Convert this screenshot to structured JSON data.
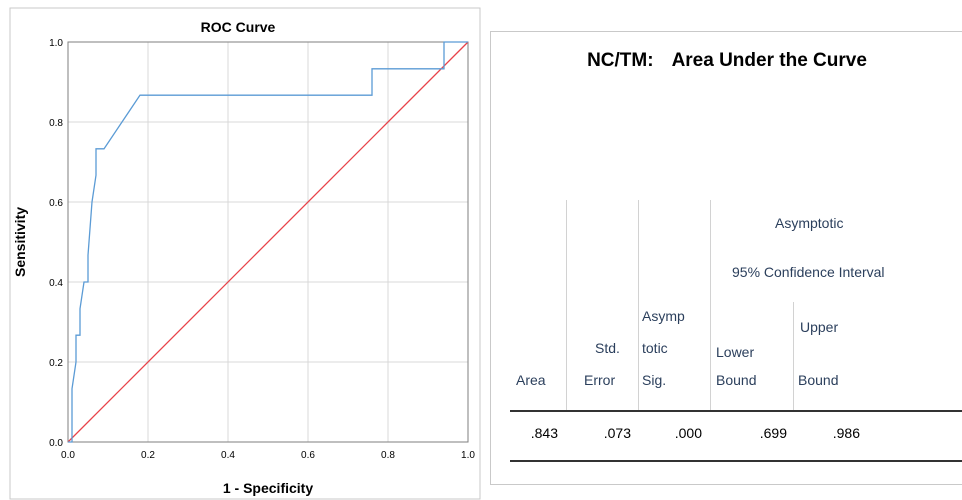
{
  "chart_data": {
    "type": "line",
    "title": "ROC Curve",
    "xlabel": "1 - Specificity",
    "ylabel": "Sensitivity",
    "xlim": [
      0,
      1
    ],
    "ylim": [
      0,
      1
    ],
    "grid": true,
    "x_ticks": [
      "0.0",
      "0.2",
      "0.4",
      "0.6",
      "0.8",
      "1.0"
    ],
    "y_ticks": [
      "0.0",
      "0.2",
      "0.4",
      "0.6",
      "0.8",
      "1.0"
    ],
    "series": [
      {
        "color": "#5b9bd5",
        "points": [
          [
            0,
            0
          ],
          [
            0.01,
            0
          ],
          [
            0.01,
            0.133
          ],
          [
            0.02,
            0.2
          ],
          [
            0.02,
            0.267
          ],
          [
            0.03,
            0.267
          ],
          [
            0.03,
            0.333
          ],
          [
            0.04,
            0.4
          ],
          [
            0.05,
            0.4
          ],
          [
            0.05,
            0.467
          ],
          [
            0.06,
            0.6
          ],
          [
            0.07,
            0.667
          ],
          [
            0.07,
            0.733
          ],
          [
            0.09,
            0.733
          ],
          [
            0.18,
            0.867
          ],
          [
            0.76,
            0.867
          ],
          [
            0.76,
            0.933
          ],
          [
            0.94,
            0.933
          ],
          [
            0.94,
            1.0
          ],
          [
            1.0,
            1.0
          ]
        ]
      },
      {
        "color": "#e8434a",
        "points": [
          [
            0,
            0
          ],
          [
            1,
            1
          ]
        ]
      }
    ]
  },
  "auc_table": {
    "title_left": "NC/TM:",
    "title_right": "Area Under the Curve",
    "asymptotic_label": "Asymptotic",
    "ci_label": "95% Confidence Interval",
    "headers": {
      "area": "Area",
      "std_1": "Std.",
      "std_2": "Error",
      "sig_1": "Asymp",
      "sig_2": "totic",
      "sig_3": "Sig.",
      "lower_1": "Lower",
      "lower_2": "Bound",
      "upper_1": "Upper",
      "upper_2": "Bound"
    },
    "row": {
      "area": ".843",
      "std_error": ".073",
      "sig": ".000",
      "lower": ".699",
      "upper": ".986"
    }
  }
}
